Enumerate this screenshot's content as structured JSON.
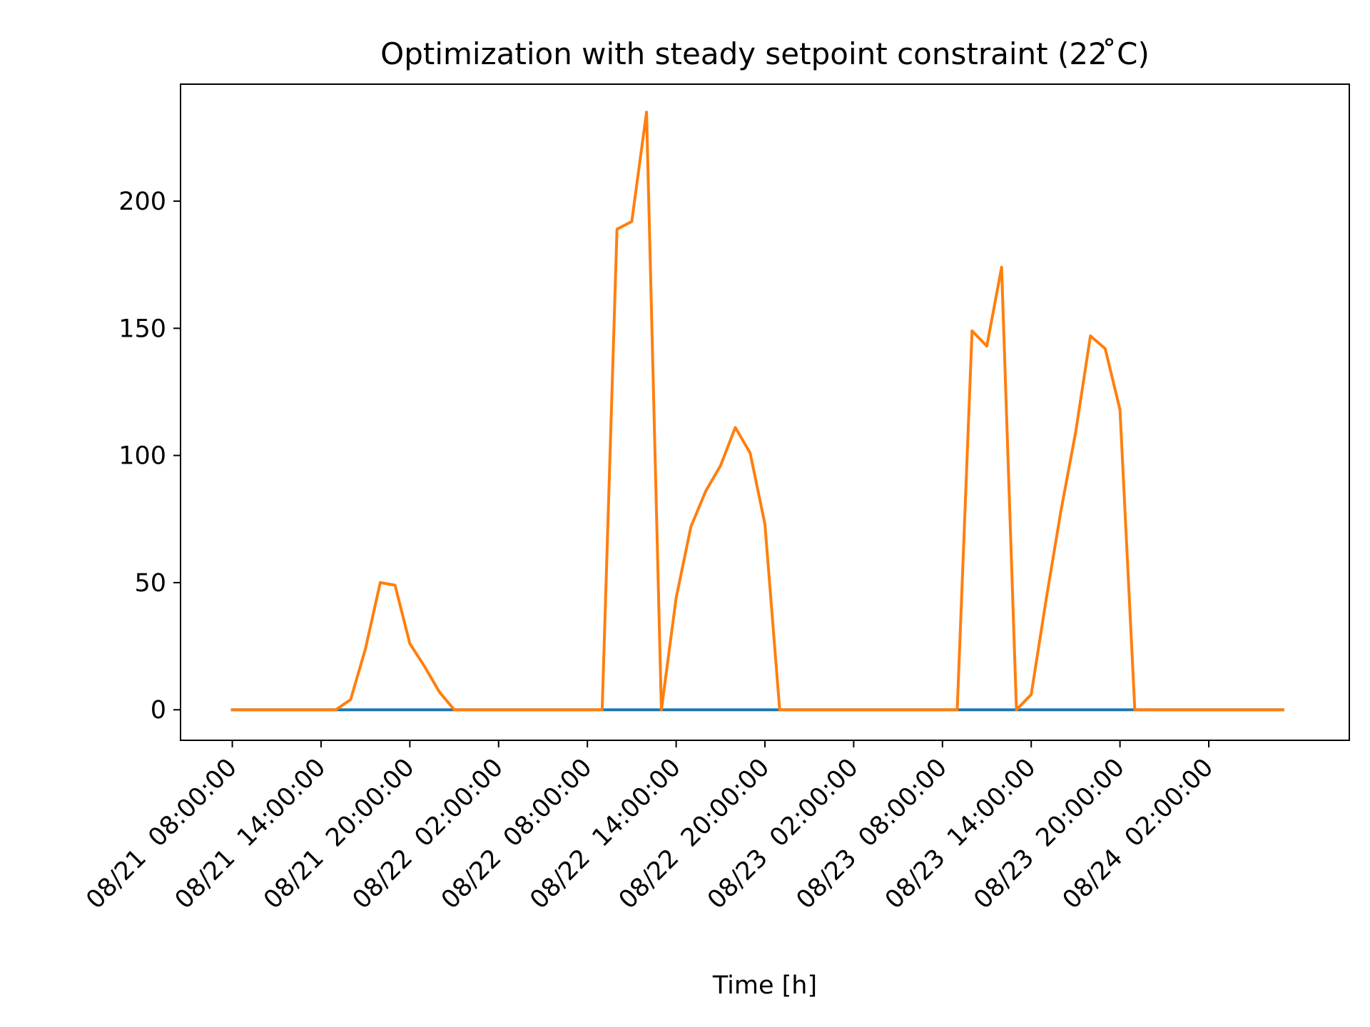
{
  "chart_data": {
    "type": "line",
    "title": "Optimization with steady setpoint constraint (22$^\\circ$C)",
    "title_display": "Optimization with steady setpoint constraint (22 ̊C)",
    "xlabel": "Time [h]",
    "ylabel": "",
    "x_unit": "hour",
    "x_ticks": [
      {
        "x": 0,
        "label": "08/21  08:00:00"
      },
      {
        "x": 6,
        "label": "08/21  14:00:00"
      },
      {
        "x": 12,
        "label": "08/21  20:00:00"
      },
      {
        "x": 18,
        "label": "08/22  02:00:00"
      },
      {
        "x": 24,
        "label": "08/22  08:00:00"
      },
      {
        "x": 30,
        "label": "08/22  14:00:00"
      },
      {
        "x": 36,
        "label": "08/22  20:00:00"
      },
      {
        "x": 42,
        "label": "08/23  02:00:00"
      },
      {
        "x": 48,
        "label": "08/23  08:00:00"
      },
      {
        "x": 54,
        "label": "08/23  14:00:00"
      },
      {
        "x": 60,
        "label": "08/23  20:00:00"
      },
      {
        "x": 66,
        "label": "08/24  02:00:00"
      }
    ],
    "y_ticks": [
      0,
      50,
      100,
      150,
      200
    ],
    "xlim": [
      -3.5,
      75.5
    ],
    "ylim": [
      -12,
      246
    ],
    "grid": false,
    "series": [
      {
        "color": "#1f77b4",
        "x": [
          0,
          71
        ],
        "y": [
          0,
          0
        ]
      },
      {
        "color": "#ff7f0e",
        "points": [
          [
            0,
            0
          ],
          [
            7,
            0
          ],
          [
            8,
            4
          ],
          [
            9,
            24
          ],
          [
            10,
            50
          ],
          [
            11,
            49
          ],
          [
            12,
            26
          ],
          [
            13,
            17
          ],
          [
            14,
            7
          ],
          [
            15,
            0
          ],
          [
            25,
            0
          ],
          [
            26,
            189
          ],
          [
            27,
            192
          ],
          [
            28,
            235
          ],
          [
            29,
            0
          ],
          [
            30,
            44
          ],
          [
            31,
            72
          ],
          [
            32,
            86
          ],
          [
            33,
            96
          ],
          [
            34,
            111
          ],
          [
            35,
            101
          ],
          [
            36,
            73
          ],
          [
            37,
            0
          ],
          [
            49,
            0
          ],
          [
            50,
            149
          ],
          [
            51,
            143
          ],
          [
            52,
            174
          ],
          [
            53,
            0
          ],
          [
            54,
            6
          ],
          [
            55,
            43
          ],
          [
            56,
            78
          ],
          [
            57,
            109
          ],
          [
            58,
            147
          ],
          [
            59,
            142
          ],
          [
            60,
            118
          ],
          [
            61,
            0
          ],
          [
            71,
            0
          ]
        ]
      }
    ]
  }
}
